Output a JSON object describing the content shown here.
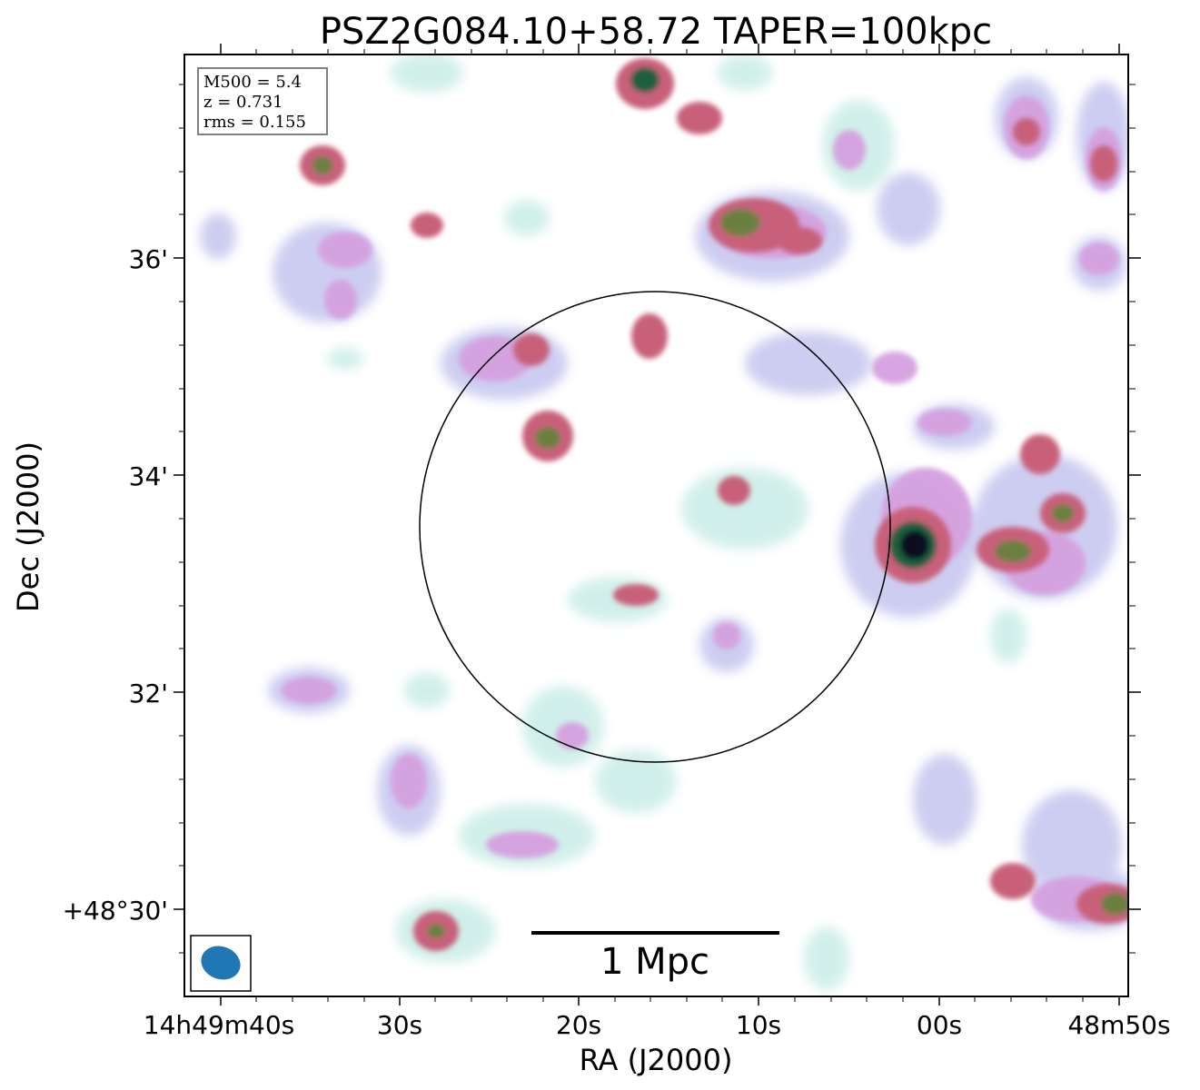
{
  "title": "PSZ2G084.10+58.72 TAPER=100kpc",
  "axes": {
    "xlabel": "RA (J2000)",
    "ylabel": "Dec (J2000)",
    "x_ticks": [
      "14h49m40s",
      "30s",
      "20s",
      "10s",
      "00s",
      "48m50s"
    ],
    "y_ticks": [
      "36'",
      "34'",
      "32'",
      "+48°30'"
    ]
  },
  "info_box": {
    "line1": "M500 = 5.4",
    "line2": "z = 0.731",
    "line3": "rms = 0.155"
  },
  "scalebar": {
    "label": "1 Mpc"
  },
  "colors": {
    "background": "#ffffff",
    "beam": "#1f77b4",
    "circle": "#000000",
    "colormap": [
      "#ffffff",
      "#cdeee8",
      "#c8c8f0",
      "#d6a0e0",
      "#c8607a",
      "#6a8040",
      "#1f6040",
      "#0a0a20"
    ]
  }
}
